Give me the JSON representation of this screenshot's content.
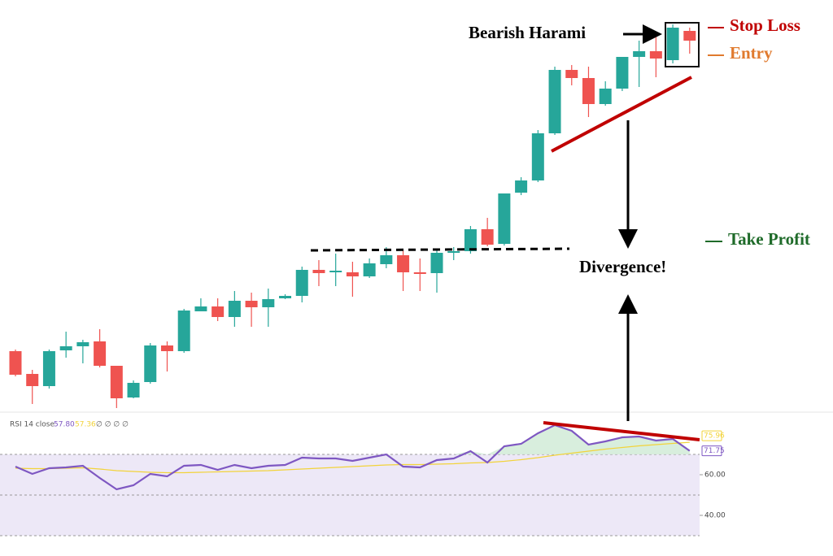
{
  "chart_data": [
    {
      "type": "candlestick",
      "up_color": "#26a69a",
      "down_color": "#ef5350",
      "ylim": [
        95,
        600
      ],
      "open": [
        168,
        140,
        125,
        169,
        174,
        180,
        150,
        111,
        130,
        175,
        168,
        217,
        223,
        210,
        230,
        222,
        233,
        236,
        268,
        265,
        265,
        260,
        275,
        286,
        265,
        264,
        289,
        291,
        318,
        300,
        363,
        378,
        436,
        514,
        504,
        472,
        491,
        530,
        537,
        526,
        562
      ],
      "high": [
        170,
        145,
        170,
        192,
        182,
        195,
        150,
        132,
        178,
        180,
        220,
        233,
        233,
        242,
        240,
        245,
        238,
        272,
        280,
        288,
        278,
        282,
        296,
        292,
        282,
        294,
        296,
        322,
        332,
        362,
        382,
        440,
        518,
        520,
        518,
        500,
        530,
        550,
        555,
        570,
        566
      ],
      "low": [
        137,
        103,
        122,
        160,
        153,
        148,
        98,
        110,
        128,
        143,
        166,
        217,
        205,
        198,
        198,
        198,
        232,
        228,
        248,
        248,
        235,
        258,
        270,
        242,
        242,
        240,
        280,
        288,
        297,
        298,
        360,
        376,
        434,
        495,
        456,
        470,
        488,
        493,
        505,
        522,
        534
      ],
      "close": [
        139,
        125,
        168,
        174,
        179,
        150,
        110,
        129,
        175,
        168,
        218,
        223,
        210,
        230,
        222,
        232,
        236,
        268,
        264,
        267,
        260,
        276,
        286,
        265,
        263,
        289,
        291,
        318,
        299,
        362,
        378,
        436,
        514,
        504,
        472,
        491,
        530,
        537,
        528,
        566,
        550
      ],
      "annotations": {
        "pattern": "Bearish Harami",
        "stop_loss": "Stop Loss",
        "entry": "Entry",
        "take_profit": "Take Profit",
        "divergence": "Divergence!"
      },
      "annotation_colors": {
        "stop_loss": "#c00000",
        "entry": "#e07a2e",
        "take_profit": "#1f6b2a"
      }
    },
    {
      "type": "line",
      "title": "RSI 14 close",
      "placeholders": "∅ ∅ ∅ ∅",
      "ylim": [
        30,
        90
      ],
      "yticks": [
        {
          "value": 60,
          "label": "60.00"
        },
        {
          "value": 40,
          "label": "40.00"
        }
      ],
      "band_lines": [
        70,
        50,
        30
      ],
      "band_color": "#ede8f7",
      "series": [
        {
          "color": "#7e57c2",
          "legend_value": "57.80",
          "end_label": "71.75",
          "values": [
            64,
            60.4,
            63.2,
            63.6,
            64.4,
            58.4,
            52.8,
            54.8,
            60.4,
            59.2,
            64.4,
            64.8,
            62.4,
            64.8,
            63.2,
            64.4,
            64.8,
            68.4,
            68,
            68,
            66.8,
            68.4,
            70,
            64,
            63.6,
            67.2,
            68,
            71.6,
            66,
            74,
            75.2,
            80.4,
            84.4,
            81.6,
            74.8,
            76.4,
            78.4,
            78.8,
            76.8,
            77.6,
            71.75
          ]
        },
        {
          "color": "#f2d33a",
          "legend_value": "57.36",
          "end_label": "75.96",
          "values": [
            63.2,
            63,
            63,
            63.2,
            63.4,
            62.8,
            62,
            61.6,
            61.2,
            61,
            61,
            61.2,
            61.4,
            61.6,
            61.8,
            62,
            62.4,
            62.8,
            63.2,
            63.6,
            64,
            64.4,
            64.8,
            65,
            65,
            65.2,
            65.4,
            65.8,
            66,
            66.6,
            67.4,
            68.4,
            69.6,
            70.6,
            71.6,
            72.6,
            73.4,
            74.2,
            74.8,
            75.4,
            75.96
          ]
        }
      ]
    }
  ]
}
